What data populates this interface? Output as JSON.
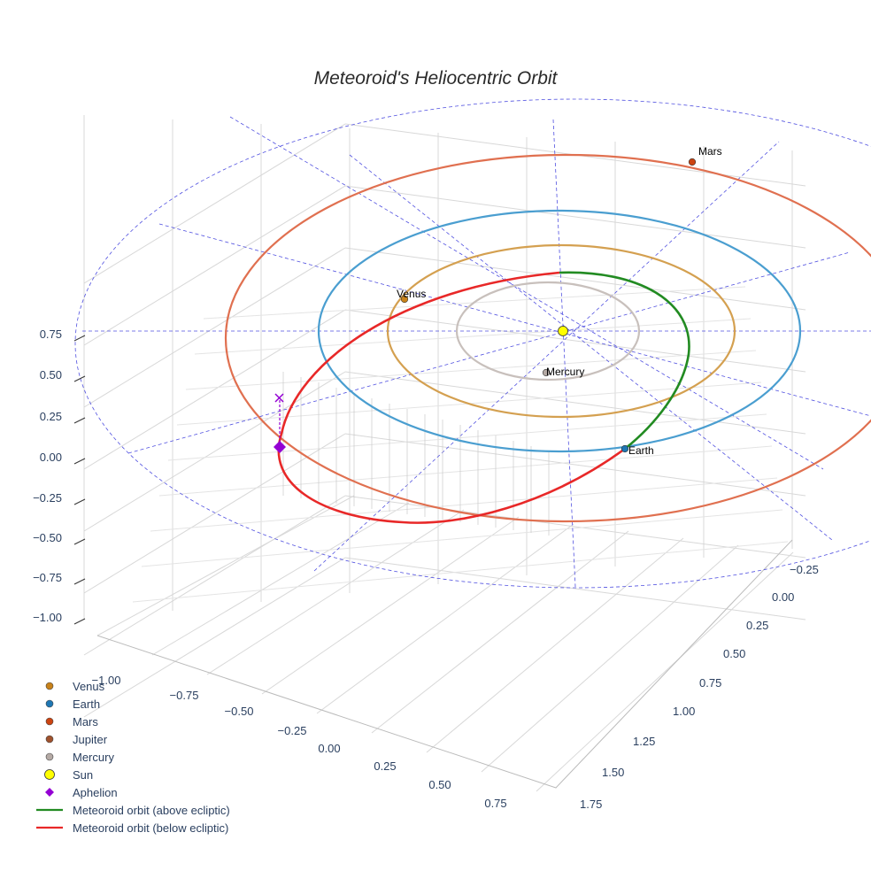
{
  "chart_data": {
    "type": "scatter3d",
    "title": "Meteoroid's Heliocentric Orbit",
    "axes": {
      "x": {
        "ticks": [
          "−1.00",
          "−0.75",
          "−0.50",
          "−0.25",
          "0.00",
          "0.25",
          "0.50",
          "0.75"
        ],
        "range": [
          -1.1,
          0.85
        ]
      },
      "y": {
        "ticks": [
          "−0.25",
          "0.00",
          "0.25",
          "0.50",
          "0.75",
          "1.00",
          "1.25",
          "1.50",
          "1.75"
        ],
        "range": [
          -0.35,
          1.8
        ]
      },
      "z": {
        "ticks": [
          "0.75",
          "0.50",
          "0.25",
          "0.00",
          "−0.25",
          "−0.50",
          "−0.75",
          "−1.00"
        ],
        "range": [
          -1.1,
          0.8
        ]
      }
    },
    "planets": [
      {
        "name": "Venus",
        "label": "Venus",
        "color": "#c8821a",
        "orbit_au": 0.72,
        "orbit_color": "#d4a050"
      },
      {
        "name": "Earth",
        "label": "Earth",
        "color": "#1f77b4",
        "orbit_au": 1.0,
        "orbit_color": "#4a9ed0"
      },
      {
        "name": "Mars",
        "label": "Mars",
        "color": "#cc4411",
        "orbit_au": 1.52,
        "orbit_color": "#e07050"
      },
      {
        "name": "Mercury",
        "label": "Mercury",
        "color": "#b5aaa5",
        "orbit_au": 0.39,
        "orbit_color": "#c8c0bc"
      }
    ],
    "legend": {
      "position": "bottom-left",
      "entries": [
        {
          "label": "Venus",
          "kind": "circle",
          "color": "#c8821a"
        },
        {
          "label": "Earth",
          "kind": "circle",
          "color": "#1f77b4"
        },
        {
          "label": "Mars",
          "kind": "circle",
          "color": "#cc4411"
        },
        {
          "label": "Jupiter",
          "kind": "circle",
          "color": "#a0522d"
        },
        {
          "label": "Mercury",
          "kind": "circle",
          "color": "#b5aaa5"
        },
        {
          "label": "Sun",
          "kind": "sun",
          "color": "#ffff00"
        },
        {
          "label": "Aphelion",
          "kind": "diamond",
          "color": "#9400d3"
        },
        {
          "label": "Meteoroid orbit (above ecliptic)",
          "kind": "line",
          "color": "#228b22"
        },
        {
          "label": "Meteoroid orbit (below ecliptic)",
          "kind": "line",
          "color": "#e82828"
        }
      ]
    }
  }
}
